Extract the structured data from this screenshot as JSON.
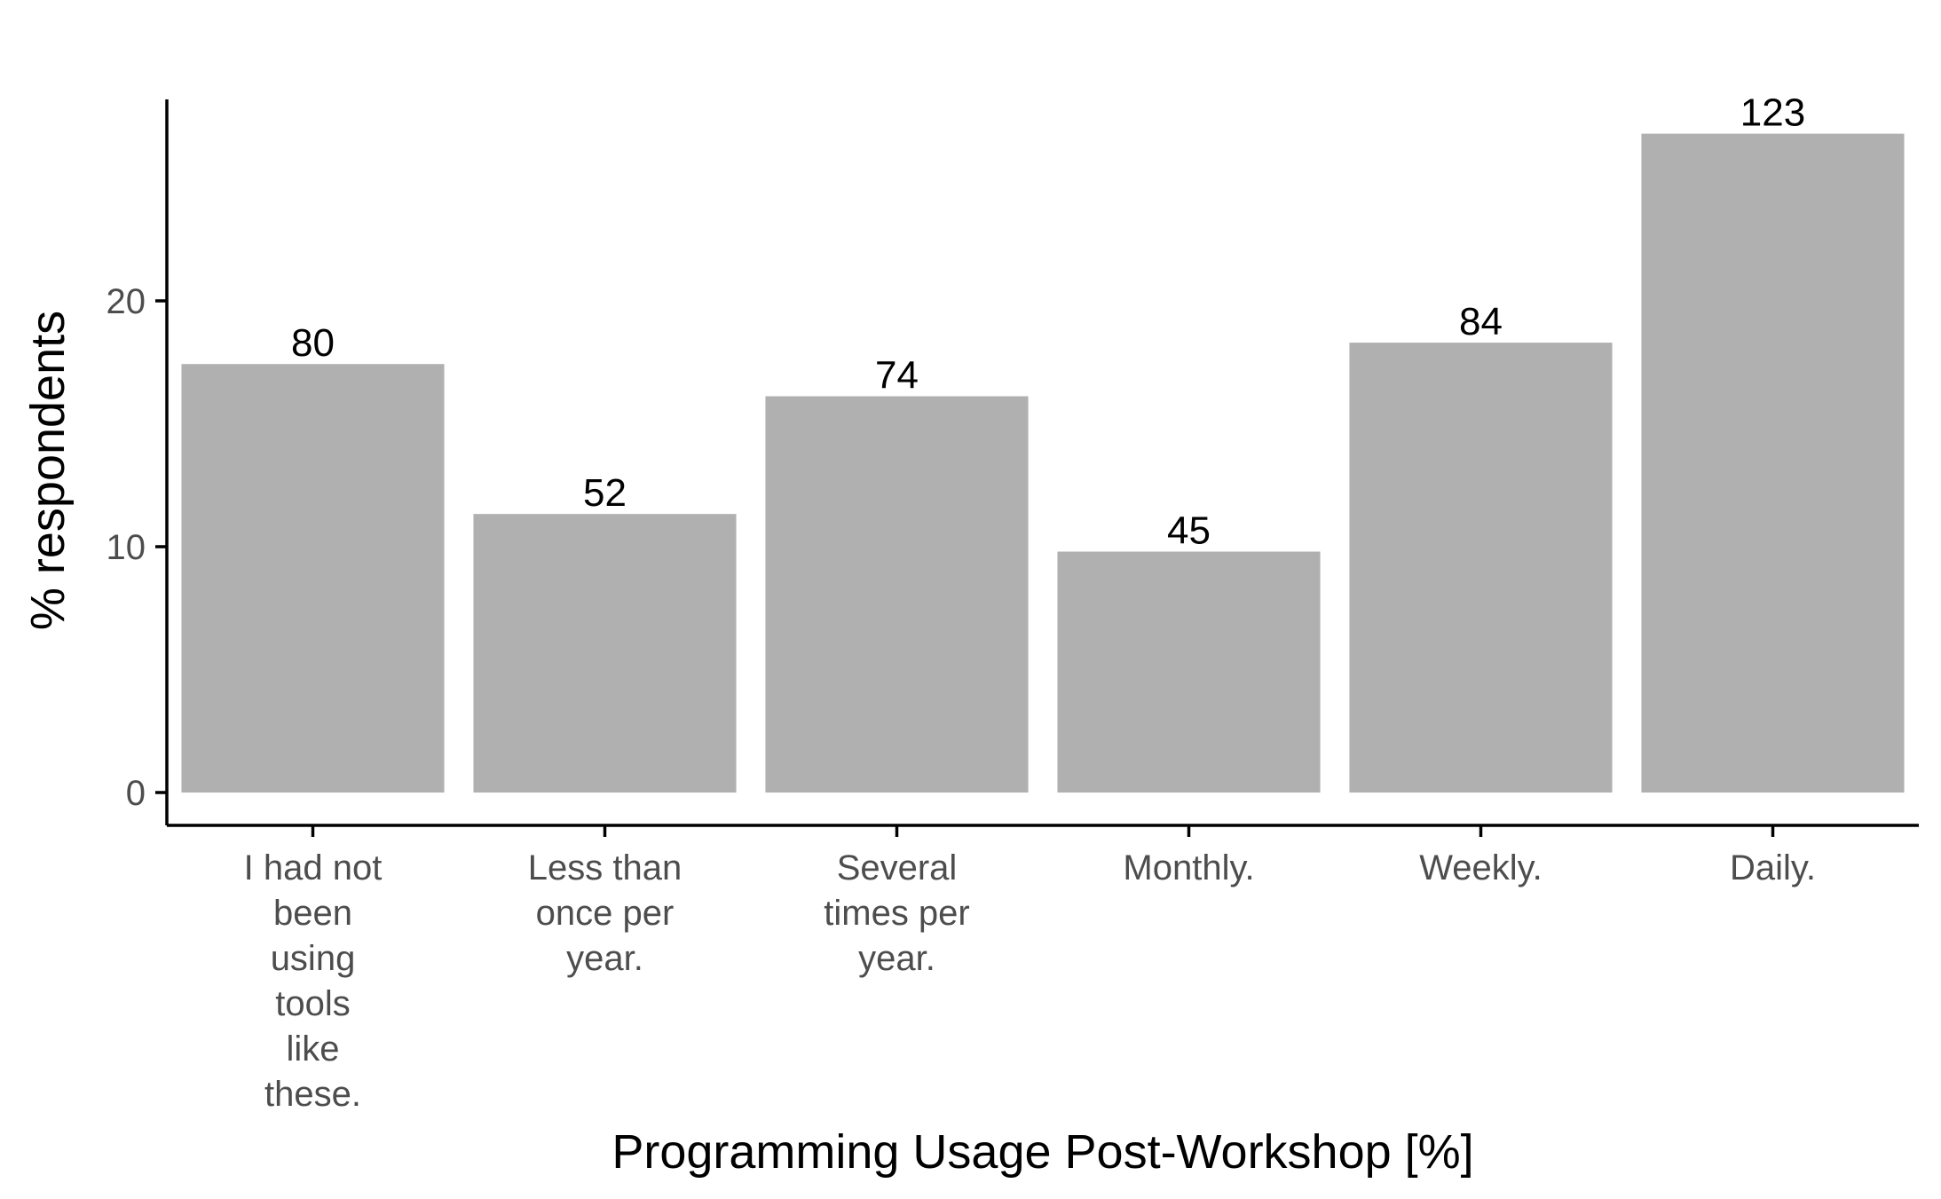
{
  "chart_data": {
    "type": "bar",
    "title": "",
    "xlabel": "Programming Usage Post-Workshop [%]",
    "ylabel": "% respondents",
    "ylim": [
      0,
      28
    ],
    "yticks": [
      0,
      10,
      20
    ],
    "grid": false,
    "legend": "none",
    "bar_color": "#b0b0b0",
    "categories": [
      [
        "I had not",
        "been",
        "using",
        "tools",
        "like",
        "these."
      ],
      [
        "Less than",
        "once per",
        "year."
      ],
      [
        "Several",
        "times per",
        "year."
      ],
      [
        "Monthly."
      ],
      [
        "Weekly."
      ],
      [
        "Daily."
      ]
    ],
    "values": [
      17.43,
      11.33,
      16.12,
      9.8,
      18.3,
      26.8
    ],
    "data_labels": [
      "80",
      "52",
      "74",
      "45",
      "84",
      "123"
    ]
  }
}
